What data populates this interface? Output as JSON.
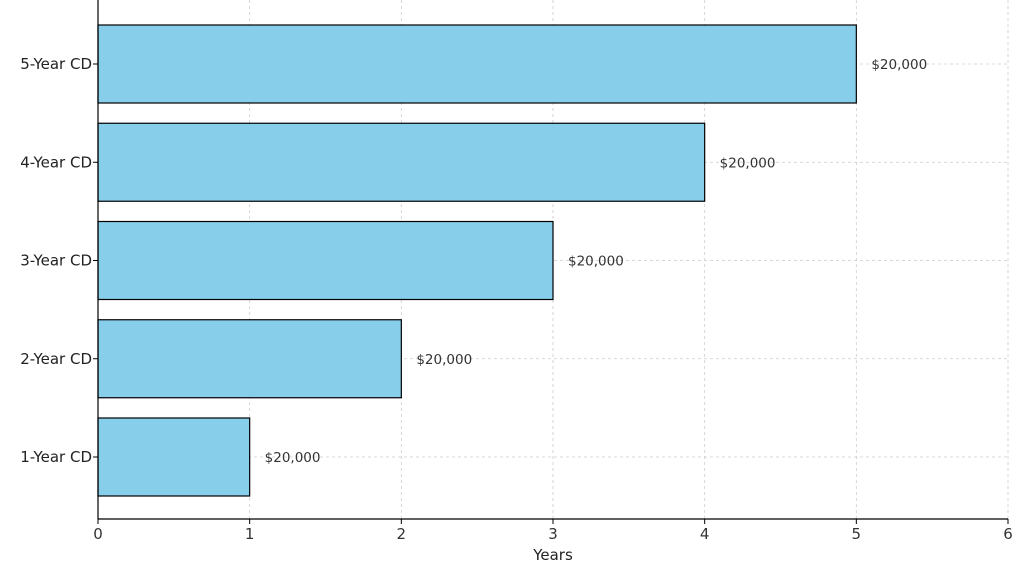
{
  "chart_data": {
    "type": "bar",
    "orientation": "horizontal",
    "title": "",
    "xlabel": "Years",
    "ylabel": "",
    "categories": [
      "1-Year CD",
      "2-Year CD",
      "3-Year CD",
      "4-Year CD",
      "5-Year CD"
    ],
    "values": [
      1,
      2,
      3,
      4,
      5
    ],
    "data_labels": [
      "$20,000",
      "$20,000",
      "$20,000",
      "$20,000",
      "$20,000"
    ],
    "xlim": [
      0,
      6
    ],
    "xticks": [
      "0",
      "1",
      "2",
      "3",
      "4",
      "5",
      "6"
    ],
    "grid": true,
    "colors": {
      "bar_fill": "#87CEEB",
      "bar_edge": "#000000",
      "grid": "#cccccc",
      "axis": "#000000"
    }
  }
}
